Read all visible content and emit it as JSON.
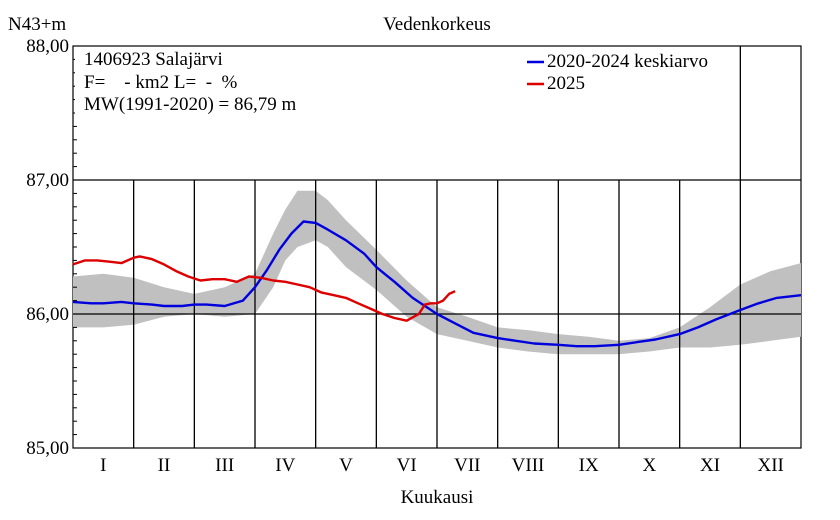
{
  "chart_data": {
    "type": "line",
    "title": "Vedenkorkeus",
    "ylabel": "N43+m",
    "xlabel": "Kuukausi",
    "ylim": [
      85.0,
      88.0
    ],
    "yticks": [
      "85,00",
      "86,00",
      "87,00",
      "88,00"
    ],
    "months": [
      "I",
      "II",
      "III",
      "IV",
      "V",
      "VI",
      "VII",
      "VIII",
      "IX",
      "X",
      "XI",
      "XII"
    ],
    "info": {
      "line1": "1406923 Salajärvi",
      "line2": "F=    - km2 L=  -  %",
      "line3": "MW(1991-2020) = 86,79 m"
    },
    "band": {
      "x": [
        0,
        0.5,
        1,
        1.5,
        2,
        2.5,
        3,
        3.3,
        3.5,
        3.7,
        4,
        4.2,
        4.5,
        5,
        5.5,
        6,
        6.5,
        7,
        7.5,
        8,
        8.5,
        9,
        9.5,
        10,
        10.5,
        11,
        11.5,
        12
      ],
      "upper": [
        86.28,
        86.3,
        86.27,
        86.2,
        86.15,
        86.2,
        86.3,
        86.6,
        86.78,
        86.92,
        86.92,
        86.85,
        86.7,
        86.48,
        86.25,
        86.05,
        85.98,
        85.9,
        85.88,
        85.85,
        85.83,
        85.8,
        85.82,
        85.9,
        86.05,
        86.22,
        86.32,
        86.38
      ],
      "lower": [
        85.9,
        85.9,
        85.92,
        85.98,
        86.0,
        85.98,
        86.0,
        86.2,
        86.4,
        86.5,
        86.55,
        86.5,
        86.35,
        86.18,
        85.98,
        85.85,
        85.8,
        85.75,
        85.72,
        85.7,
        85.7,
        85.7,
        85.72,
        85.75,
        85.75,
        85.77,
        85.8,
        85.83
      ]
    },
    "series": [
      {
        "name": "2020-2024 keskiarvo",
        "color": "#0000dd",
        "x": [
          0,
          0.3,
          0.5,
          0.8,
          1,
          1.3,
          1.5,
          1.8,
          2,
          2.2,
          2.5,
          2.8,
          3,
          3.2,
          3.4,
          3.6,
          3.8,
          4,
          4.2,
          4.5,
          4.8,
          5,
          5.3,
          5.6,
          6,
          6.3,
          6.6,
          7,
          7.3,
          7.6,
          8,
          8.3,
          8.6,
          9,
          9.3,
          9.6,
          10,
          10.3,
          10.6,
          11,
          11.3,
          11.6,
          12
        ],
        "y": [
          86.09,
          86.08,
          86.08,
          86.09,
          86.08,
          86.07,
          86.06,
          86.06,
          86.07,
          86.07,
          86.06,
          86.1,
          86.2,
          86.33,
          86.48,
          86.6,
          86.69,
          86.68,
          86.63,
          86.55,
          86.45,
          86.35,
          86.24,
          86.12,
          86.0,
          85.93,
          85.86,
          85.82,
          85.8,
          85.78,
          85.77,
          85.76,
          85.76,
          85.77,
          85.79,
          85.81,
          85.85,
          85.9,
          85.96,
          86.03,
          86.08,
          86.12,
          86.14
        ]
      },
      {
        "name": "2025",
        "color": "#dd0000",
        "x": [
          0,
          0.2,
          0.4,
          0.6,
          0.8,
          1.0,
          1.1,
          1.3,
          1.5,
          1.7,
          1.9,
          2.1,
          2.3,
          2.5,
          2.7,
          2.9,
          3.1,
          3.3,
          3.5,
          3.7,
          3.9,
          4.1,
          4.3,
          4.5,
          4.7,
          4.9,
          5.1,
          5.3,
          5.5,
          5.7,
          5.8,
          5.9,
          6.0,
          6.1,
          6.2,
          6.3
        ],
        "y": [
          86.37,
          86.4,
          86.4,
          86.39,
          86.38,
          86.42,
          86.43,
          86.41,
          86.37,
          86.32,
          86.28,
          86.25,
          86.26,
          86.26,
          86.24,
          86.28,
          86.27,
          86.25,
          86.24,
          86.22,
          86.2,
          86.16,
          86.14,
          86.12,
          86.08,
          86.04,
          86.0,
          85.97,
          85.95,
          86.0,
          86.07,
          86.08,
          86.08,
          86.1,
          86.15,
          86.17
        ]
      }
    ],
    "legend_position": "top-right",
    "grid": true
  }
}
